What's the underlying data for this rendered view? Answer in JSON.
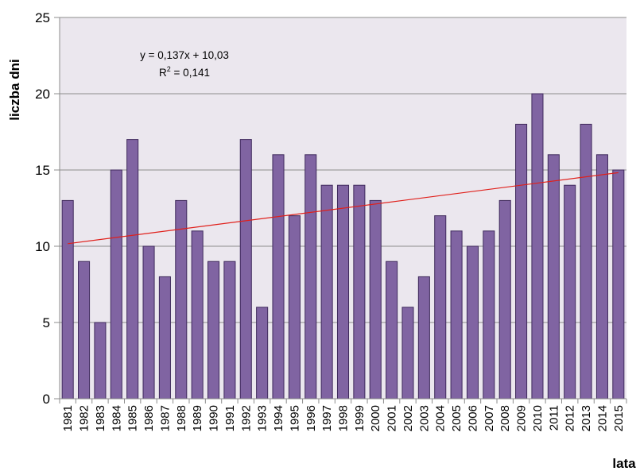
{
  "chart_data": {
    "type": "bar",
    "categories": [
      "1981",
      "1982",
      "1983",
      "1984",
      "1985",
      "1986",
      "1987",
      "1988",
      "1989",
      "1990",
      "1991",
      "1992",
      "1993",
      "1994",
      "1995",
      "1996",
      "1997",
      "1998",
      "1999",
      "2000",
      "2001",
      "2002",
      "2003",
      "2004",
      "2005",
      "2006",
      "2007",
      "2008",
      "2009",
      "2010",
      "2011",
      "2012",
      "2013",
      "2014",
      "2015"
    ],
    "values": [
      13,
      9,
      5,
      15,
      17,
      10,
      8,
      13,
      11,
      9,
      9,
      17,
      6,
      16,
      12,
      16,
      14,
      14,
      14,
      13,
      9,
      6,
      8,
      12,
      11,
      10,
      11,
      13,
      18,
      20,
      16,
      14,
      18,
      16,
      15
    ],
    "xlabel": "lata",
    "ylabel": "liczba dni",
    "ylim": [
      0,
      25
    ],
    "yticks": [
      "0",
      "5",
      "10",
      "15",
      "20",
      "25"
    ],
    "grid": true,
    "legend": "none",
    "trendline": {
      "type": "linear",
      "slope": 0.137,
      "intercept": 10.03,
      "equation": "y = 0,137x + 10,03",
      "r2_prefix": "R",
      "r2_sup": "2",
      "r2_suffix": " = 0,141"
    },
    "colors": {
      "bar_fill": "#8064a2",
      "bar_stroke": "#3f2a5c",
      "trend": "#e0201b",
      "plot_bg": "#ebe7ee",
      "grid": "#8c8c8c"
    }
  }
}
